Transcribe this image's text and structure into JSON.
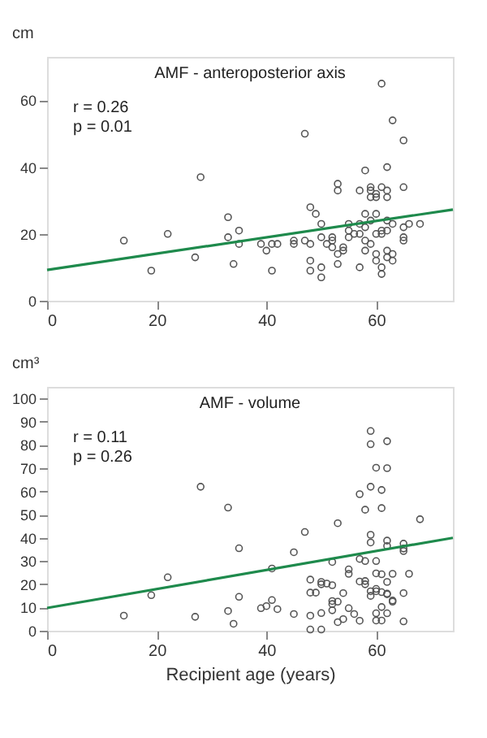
{
  "chart_data": [
    {
      "type": "scatter",
      "title": "AMF - anteroposterior axis",
      "ylabel": "cm",
      "annotations": [
        "r = 0.26",
        "p = 0.01"
      ],
      "xlim": [
        0,
        74
      ],
      "xticks": [
        0,
        20,
        40,
        60
      ],
      "ylim": [
        0,
        73
      ],
      "yticks": [
        0,
        20,
        40,
        60
      ],
      "series": [
        {
          "type": "scatter",
          "marker": "circle",
          "color": "#555555",
          "x": [
            14,
            19,
            22,
            27,
            28,
            33,
            33,
            34,
            35,
            35,
            39,
            40,
            41,
            41,
            42,
            45,
            45,
            47,
            47,
            48,
            48,
            48,
            48,
            49,
            50,
            50,
            50,
            50,
            51,
            52,
            52,
            52,
            53,
            53,
            53,
            53,
            54,
            54,
            55,
            55,
            55,
            56,
            57,
            57,
            57,
            57,
            58,
            58,
            58,
            58,
            58,
            59,
            59,
            59,
            59,
            59,
            60,
            60,
            60,
            60,
            60,
            60,
            61,
            61,
            61,
            61,
            61,
            61,
            62,
            62,
            62,
            62,
            62,
            62,
            62,
            63,
            63,
            63,
            63,
            65,
            65,
            65,
            65,
            65,
            66,
            68
          ],
          "values": [
            18,
            9,
            20,
            13,
            37,
            25,
            19,
            11,
            21,
            17,
            17,
            15,
            9,
            17,
            17,
            18,
            17,
            50,
            18,
            28,
            17,
            12,
            9,
            26,
            23,
            19,
            10,
            7,
            17,
            19,
            18,
            16,
            35,
            33,
            14,
            11,
            16,
            15,
            23,
            21,
            19,
            20,
            33,
            23,
            20,
            10,
            39,
            26,
            22,
            18,
            15,
            34,
            33,
            31,
            24,
            17,
            32,
            31,
            26,
            20,
            14,
            12,
            65,
            34,
            21,
            20,
            10,
            8,
            40,
            33,
            31,
            24,
            21,
            15,
            13,
            54,
            23,
            14,
            12,
            48,
            34,
            22,
            19,
            18,
            23,
            23
          ]
        },
        {
          "type": "line",
          "line_style": "solid",
          "color": "#1e8a4c",
          "x": [
            0,
            74
          ],
          "values": [
            9.2,
            27.3
          ]
        }
      ]
    },
    {
      "type": "scatter",
      "title": "AMF - volume",
      "xlabel": "Recipient age (years)",
      "ylabel": "cm³",
      "annotations": [
        "r = 0.11",
        "p = 0.26"
      ],
      "xlim": [
        0,
        74
      ],
      "xticks": [
        0,
        20,
        40,
        60
      ],
      "ylim": [
        0,
        105
      ],
      "yticks": [
        0,
        10,
        20,
        30,
        40,
        50,
        60,
        70,
        80,
        90,
        100
      ],
      "series": [
        {
          "type": "scatter",
          "marker": "circle",
          "color": "#555555",
          "x": [
            14,
            19,
            22,
            27,
            28,
            33,
            33,
            34,
            35,
            35,
            39,
            40,
            41,
            41,
            42,
            45,
            45,
            47,
            48,
            48,
            48,
            48,
            49,
            50,
            50,
            50,
            50,
            51,
            52,
            52,
            52,
            52,
            52,
            53,
            53,
            53,
            54,
            54,
            55,
            55,
            55,
            56,
            57,
            57,
            57,
            57,
            58,
            58,
            58,
            58,
            59,
            59,
            59,
            59,
            59,
            59,
            59,
            60,
            60,
            60,
            60,
            60,
            60,
            60,
            61,
            61,
            61,
            61,
            61,
            61,
            62,
            62,
            62,
            62,
            62,
            62,
            62,
            62,
            63,
            63,
            63,
            65,
            65,
            65,
            65,
            65,
            66,
            68
          ],
          "values": [
            6.5,
            15.3,
            23,
            6,
            62,
            53,
            8.5,
            3,
            35.5,
            14.6,
            9.7,
            10.6,
            26.8,
            13.2,
            9.3,
            33.8,
            7.2,
            42.5,
            22,
            16.4,
            6.5,
            0.5,
            16.4,
            21,
            20,
            7.6,
            0.5,
            20.3,
            29.6,
            19.6,
            12.8,
            11.5,
            8.8,
            46.3,
            12.5,
            3.7,
            16.2,
            5,
            26.4,
            24.5,
            9.7,
            7.2,
            58.8,
            30.9,
            21.2,
            4.3,
            52.1,
            30,
            21.4,
            20,
            86,
            80.3,
            62,
            41.3,
            38,
            17,
            15,
            70.2,
            30,
            24.7,
            18,
            17,
            7.5,
            4.4,
            60.6,
            52.8,
            24.3,
            16.6,
            10.2,
            4.4,
            81.6,
            70,
            38.8,
            36.5,
            21,
            16,
            15.7,
            7.5,
            24.5,
            13,
            12.5,
            37.5,
            35.4,
            34.3,
            16.2,
            4,
            24.5,
            48
          ]
        },
        {
          "type": "line",
          "line_style": "solid",
          "color": "#1e8a4c",
          "x": [
            0,
            74
          ],
          "values": [
            9.8,
            40
          ]
        }
      ]
    }
  ]
}
